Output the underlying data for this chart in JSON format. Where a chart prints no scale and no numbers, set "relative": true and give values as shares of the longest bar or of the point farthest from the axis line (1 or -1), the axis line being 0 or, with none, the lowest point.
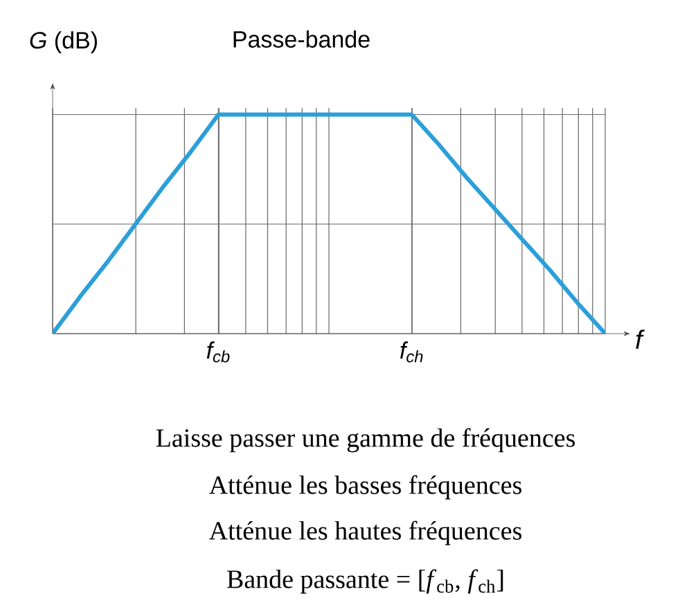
{
  "chart_data": {
    "type": "line",
    "title": "Passe-bande",
    "ylabel": "*G* (dB)",
    "xlabel": "f",
    "categories": [
      null,
      null,
      null,
      null,
      null,
      null,
      "f$_{cb}$",
      null,
      null,
      null,
      null,
      null,
      null,
      "f$_{ch}$",
      null,
      null,
      null,
      null,
      null,
      null,
      null
    ],
    "values": [
      0,
      0.17,
      0.33,
      0.5,
      0.67,
      0.83,
      1,
      1,
      1,
      1,
      1,
      1,
      1,
      1,
      0.86,
      0.71,
      0.57,
      0.43,
      0.29,
      0.14,
      0
    ],
    "relative": true,
    "color": "#2b9fd8",
    "grid": true,
    "marker": "none",
    "line_style": "solid",
    "annotations": [
      "Laisse passer une gamme de fréquences",
      "Atténue les basses fréquences",
      "Atténue les hautes fréquences",
      "Bande passante = [*f*$_{cb}$, *f*$_{ch}$]"
    ]
  }
}
